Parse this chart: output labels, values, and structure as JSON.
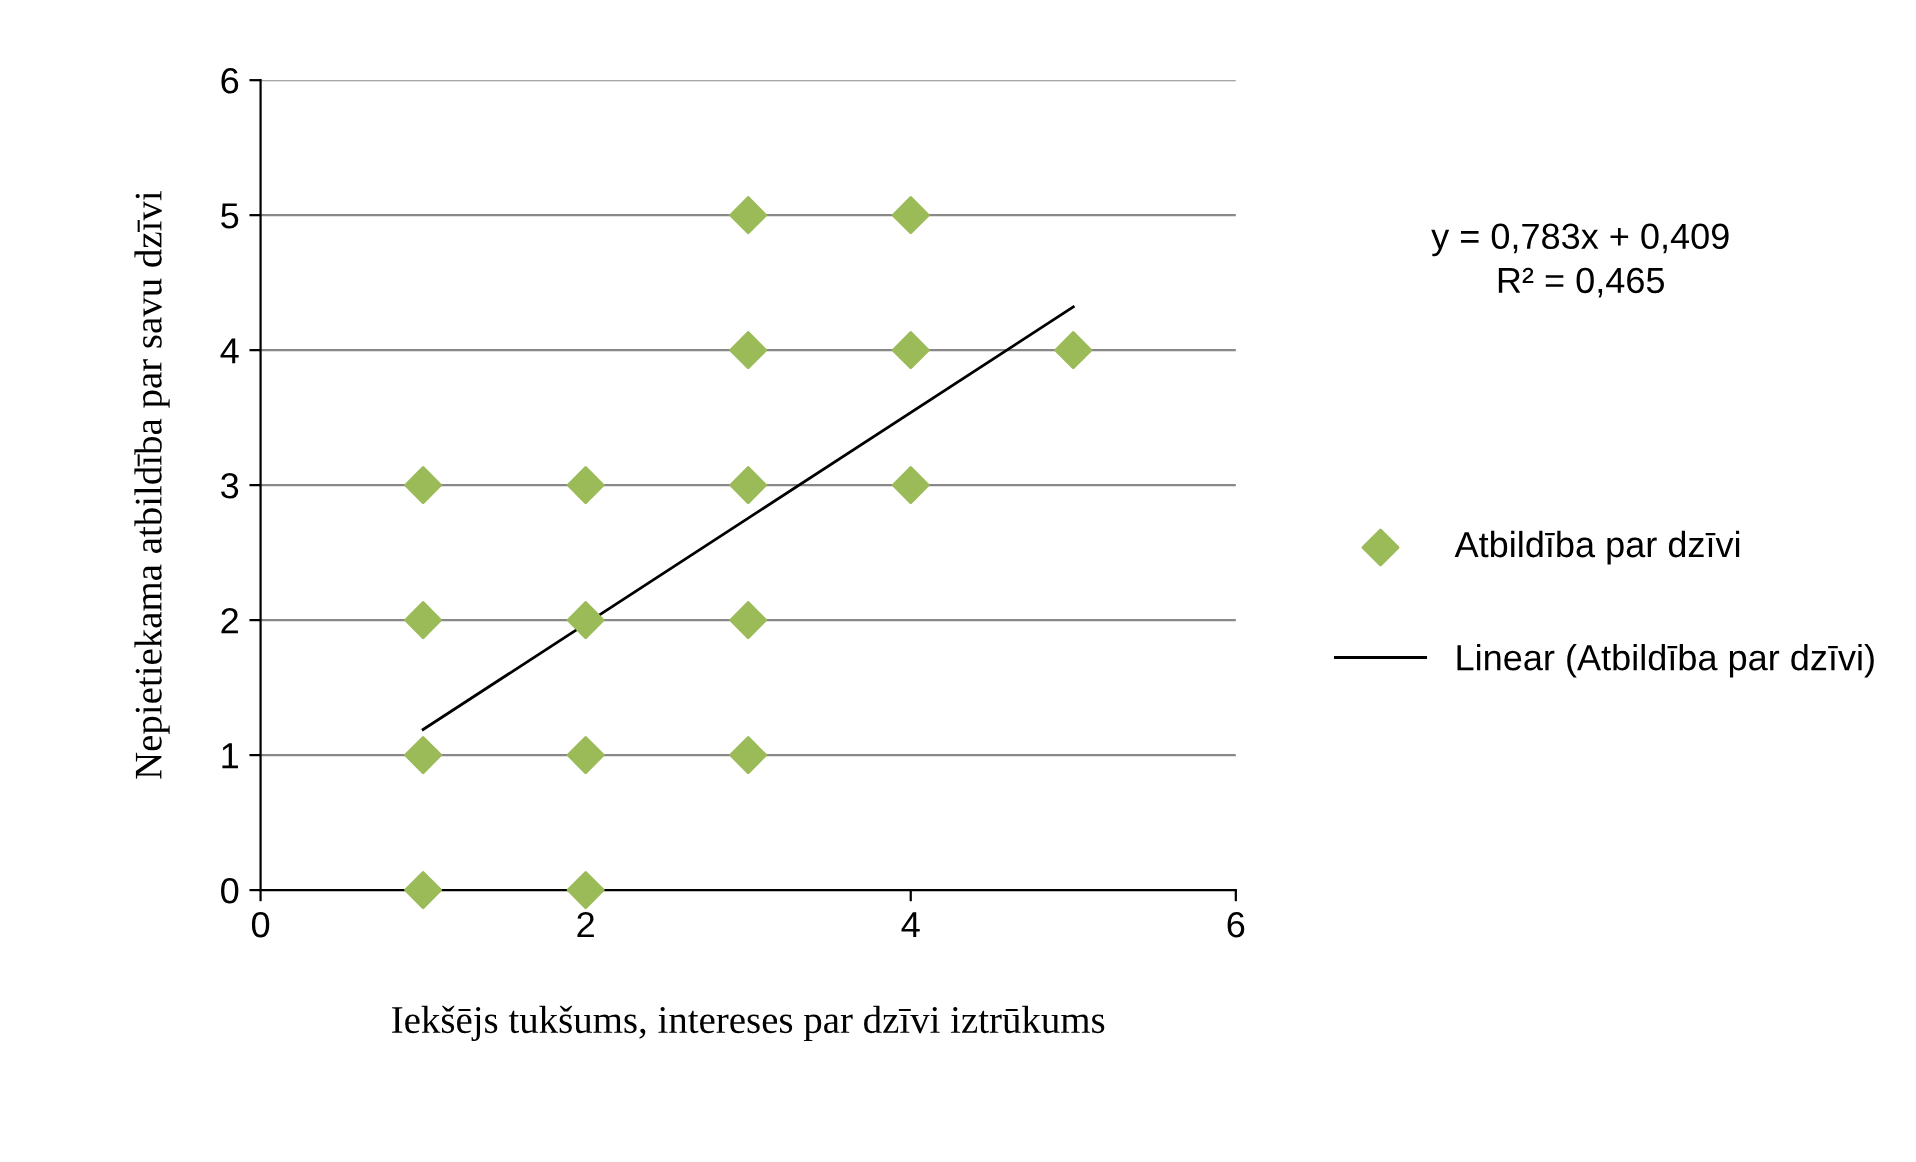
{
  "chart_data": {
    "type": "scatter",
    "xlabel": "Iekšējs tukšums, intereses par dzīvi iztrūkums",
    "ylabel": "Nepietiekama atbildība par savu dzīvi",
    "xlim": [
      0,
      6
    ],
    "xticks": [
      0,
      2,
      4,
      6
    ],
    "ylim": [
      0,
      6
    ],
    "yticks": [
      0,
      1,
      2,
      3,
      4,
      5,
      6
    ],
    "grid": "y",
    "legend": "right",
    "marker": "diamond",
    "series": [
      {
        "name": "Atbildība par dzīvi",
        "color": "#9bbb59",
        "x": [
          1,
          1,
          1,
          1,
          2,
          2,
          2,
          2,
          3,
          3,
          3,
          3,
          3,
          4,
          4,
          4,
          5
        ],
        "values": [
          0,
          1,
          2,
          3,
          0,
          1,
          2,
          3,
          1,
          2,
          3,
          4,
          5,
          3,
          4,
          5,
          4
        ]
      },
      {
        "name": "Linear (Atbildība par dzīvi)",
        "type": "line",
        "marker": "none",
        "color": "#000000",
        "x": [
          1,
          5
        ],
        "values": [
          1.19,
          4.32
        ]
      }
    ],
    "annotations": [
      "y = 0,783x + 0,409\nR² = 0,465"
    ]
  }
}
